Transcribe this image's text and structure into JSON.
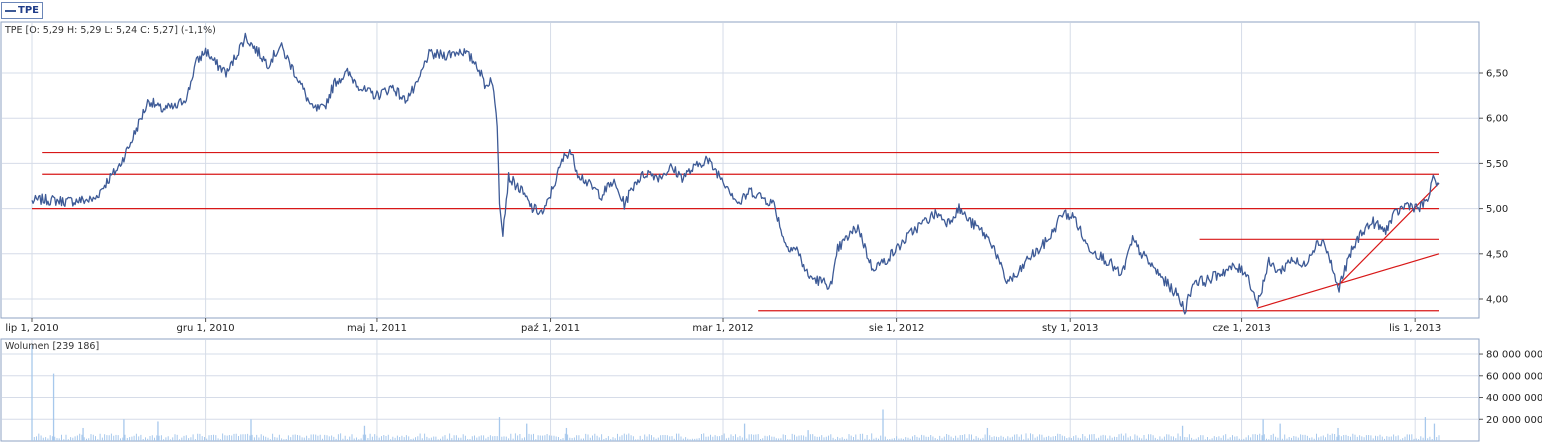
{
  "legend": {
    "label": "TPE",
    "color": "#3d5a96"
  },
  "price_panel": {
    "info": "TPE [O: 5,29  H: 5,29  L: 5,24  C: 5,27] (-1,1%)"
  },
  "volume_panel": {
    "info": "Wolumen [239 186]"
  },
  "colors": {
    "series": "#3d5a96",
    "trendline": "#d81818",
    "volume": "#a7c8ec",
    "grid": "#d6dce8",
    "frame": "#8fa3c3"
  },
  "chart_data": [
    {
      "type": "line",
      "id": "price",
      "series": [
        {
          "name": "TPE"
        }
      ],
      "x_range": [
        "2010-07-01",
        "2013-11-22"
      ],
      "ylim": [
        3.8,
        7.05
      ],
      "y_ticks": [
        4.0,
        4.5,
        5.0,
        5.5,
        6.0,
        6.5
      ],
      "y_tick_labels": [
        "4,00",
        "4,50",
        "5,00",
        "5,50",
        "6,00",
        "6,50"
      ],
      "x_ticks": [
        "2010-07-01",
        "2010-12-01",
        "2011-05-01",
        "2011-10-01",
        "2012-03-01",
        "2012-08-01",
        "2013-01-01",
        "2013-06-01",
        "2013-11-01"
      ],
      "x_tick_labels": [
        "lip 1, 2010",
        "gru 1, 2010",
        "maj 1, 2011",
        "paź 1, 2011",
        "mar 1, 2012",
        "sie 1, 2012",
        "sty 1, 2013",
        "cze 1, 2013",
        "lis 1, 2013"
      ],
      "points": [
        [
          "2010-07-01",
          5.08
        ],
        [
          "2010-07-10",
          5.1
        ],
        [
          "2010-08-01",
          5.08
        ],
        [
          "2010-08-25",
          5.1
        ],
        [
          "2010-09-05",
          5.3
        ],
        [
          "2010-09-15",
          5.45
        ],
        [
          "2010-09-25",
          5.7
        ],
        [
          "2010-10-05",
          6.0
        ],
        [
          "2010-10-12",
          6.2
        ],
        [
          "2010-10-22",
          6.1
        ],
        [
          "2010-11-05",
          6.12
        ],
        [
          "2010-11-15",
          6.25
        ],
        [
          "2010-11-22",
          6.6
        ],
        [
          "2010-12-01",
          6.75
        ],
        [
          "2010-12-10",
          6.6
        ],
        [
          "2010-12-20",
          6.5
        ],
        [
          "2011-01-05",
          6.9
        ],
        [
          "2011-01-15",
          6.75
        ],
        [
          "2011-01-25",
          6.6
        ],
        [
          "2011-02-05",
          6.8
        ],
        [
          "2011-02-20",
          6.45
        ],
        [
          "2011-03-05",
          6.1
        ],
        [
          "2011-03-15",
          6.1
        ],
        [
          "2011-03-25",
          6.4
        ],
        [
          "2011-04-05",
          6.5
        ],
        [
          "2011-04-20",
          6.3
        ],
        [
          "2011-05-01",
          6.25
        ],
        [
          "2011-05-15",
          6.35
        ],
        [
          "2011-05-25",
          6.2
        ],
        [
          "2011-06-05",
          6.35
        ],
        [
          "2011-06-15",
          6.7
        ],
        [
          "2011-07-01",
          6.7
        ],
        [
          "2011-07-15",
          6.75
        ],
        [
          "2011-07-28",
          6.6
        ],
        [
          "2011-08-05",
          6.35
        ],
        [
          "2011-08-10",
          6.45
        ],
        [
          "2011-08-15",
          5.95
        ],
        [
          "2011-08-17",
          5.1
        ],
        [
          "2011-08-20",
          4.75
        ],
        [
          "2011-08-25",
          5.35
        ],
        [
          "2011-09-05",
          5.2
        ],
        [
          "2011-09-15",
          5.0
        ],
        [
          "2011-09-25",
          4.95
        ],
        [
          "2011-10-05",
          5.3
        ],
        [
          "2011-10-12",
          5.55
        ],
        [
          "2011-10-18",
          5.65
        ],
        [
          "2011-10-25",
          5.4
        ],
        [
          "2011-11-05",
          5.25
        ],
        [
          "2011-11-15",
          5.15
        ],
        [
          "2011-11-25",
          5.3
        ],
        [
          "2011-12-05",
          5.05
        ],
        [
          "2011-12-15",
          5.3
        ],
        [
          "2011-12-25",
          5.4
        ],
        [
          "2012-01-05",
          5.35
        ],
        [
          "2012-01-15",
          5.45
        ],
        [
          "2012-01-25",
          5.35
        ],
        [
          "2012-02-05",
          5.45
        ],
        [
          "2012-02-15",
          5.55
        ],
        [
          "2012-02-25",
          5.4
        ],
        [
          "2012-03-05",
          5.25
        ],
        [
          "2012-03-15",
          5.05
        ],
        [
          "2012-03-25",
          5.2
        ],
        [
          "2012-04-05",
          5.12
        ],
        [
          "2012-04-15",
          5.05
        ],
        [
          "2012-04-25",
          4.6
        ],
        [
          "2012-05-05",
          4.55
        ],
        [
          "2012-05-15",
          4.25
        ],
        [
          "2012-05-25",
          4.2
        ],
        [
          "2012-06-05",
          4.15
        ],
        [
          "2012-06-10",
          4.55
        ],
        [
          "2012-06-20",
          4.7
        ],
        [
          "2012-06-28",
          4.8
        ],
        [
          "2012-07-10",
          4.35
        ],
        [
          "2012-07-20",
          4.4
        ],
        [
          "2012-08-01",
          4.55
        ],
        [
          "2012-08-15",
          4.75
        ],
        [
          "2012-08-25",
          4.85
        ],
        [
          "2012-09-05",
          4.95
        ],
        [
          "2012-09-15",
          4.85
        ],
        [
          "2012-09-25",
          5.0
        ],
        [
          "2012-10-05",
          4.85
        ],
        [
          "2012-10-15",
          4.75
        ],
        [
          "2012-10-25",
          4.6
        ],
        [
          "2012-11-05",
          4.2
        ],
        [
          "2012-11-15",
          4.25
        ],
        [
          "2012-11-25",
          4.45
        ],
        [
          "2012-12-05",
          4.55
        ],
        [
          "2012-12-15",
          4.7
        ],
        [
          "2012-12-25",
          4.95
        ],
        [
          "2013-01-05",
          4.9
        ],
        [
          "2013-01-15",
          4.6
        ],
        [
          "2013-01-25",
          4.5
        ],
        [
          "2013-02-05",
          4.4
        ],
        [
          "2013-02-15",
          4.25
        ],
        [
          "2013-02-25",
          4.65
        ],
        [
          "2013-03-05",
          4.5
        ],
        [
          "2013-03-15",
          4.35
        ],
        [
          "2013-03-25",
          4.2
        ],
        [
          "2013-04-05",
          4.05
        ],
        [
          "2013-04-12",
          3.88
        ],
        [
          "2013-04-20",
          4.2
        ],
        [
          "2013-05-01",
          4.2
        ],
        [
          "2013-05-15",
          4.3
        ],
        [
          "2013-05-25",
          4.35
        ],
        [
          "2013-06-05",
          4.3
        ],
        [
          "2013-06-15",
          3.95
        ],
        [
          "2013-06-25",
          4.4
        ],
        [
          "2013-07-05",
          4.3
        ],
        [
          "2013-07-15",
          4.45
        ],
        [
          "2013-07-25",
          4.35
        ],
        [
          "2013-08-05",
          4.6
        ],
        [
          "2013-08-12",
          4.65
        ],
        [
          "2013-08-20",
          4.35
        ],
        [
          "2013-08-25",
          4.1
        ],
        [
          "2013-09-05",
          4.5
        ],
        [
          "2013-09-15",
          4.75
        ],
        [
          "2013-09-25",
          4.85
        ],
        [
          "2013-10-05",
          4.75
        ],
        [
          "2013-10-15",
          4.95
        ],
        [
          "2013-10-25",
          5.05
        ],
        [
          "2013-11-05",
          5.0
        ],
        [
          "2013-11-12",
          5.1
        ],
        [
          "2013-11-18",
          5.35
        ],
        [
          "2013-11-22",
          5.27
        ]
      ],
      "trendlines": [
        {
          "from": [
            "2010-07-01",
            5.0
          ],
          "to": [
            "2013-11-22",
            5.0
          ]
        },
        {
          "from": [
            "2010-07-10",
            5.38
          ],
          "to": [
            "2013-11-22",
            5.38
          ]
        },
        {
          "from": [
            "2010-07-10",
            5.62
          ],
          "to": [
            "2013-11-22",
            5.62
          ]
        },
        {
          "from": [
            "2012-04-01",
            3.87
          ],
          "to": [
            "2013-11-22",
            3.87
          ]
        },
        {
          "from": [
            "2013-04-25",
            4.66
          ],
          "to": [
            "2013-11-22",
            4.66
          ]
        },
        {
          "from": [
            "2013-06-15",
            3.9
          ],
          "to": [
            "2013-11-22",
            4.5
          ]
        },
        {
          "from": [
            "2013-08-25",
            4.15
          ],
          "to": [
            "2013-11-22",
            5.28
          ]
        }
      ]
    },
    {
      "type": "bar",
      "id": "volume",
      "series": [
        {
          "name": "Wolumen"
        }
      ],
      "x_range": [
        "2010-07-01",
        "2013-11-22"
      ],
      "ylim": [
        0,
        92000000
      ],
      "y_ticks": [
        20000000,
        40000000,
        60000000,
        80000000
      ],
      "y_tick_labels": [
        "20 000 000",
        "40 000 000",
        "60 000 000",
        "80 000 000"
      ],
      "baseline": 3500000,
      "spikes": [
        [
          "2010-07-01",
          88000000
        ],
        [
          "2010-07-20",
          62000000
        ],
        [
          "2010-08-15",
          12000000
        ],
        [
          "2010-09-20",
          20000000
        ],
        [
          "2010-10-20",
          18000000
        ],
        [
          "2011-01-10",
          20000000
        ],
        [
          "2011-04-20",
          14000000
        ],
        [
          "2011-08-17",
          22000000
        ],
        [
          "2011-09-10",
          16000000
        ],
        [
          "2011-10-15",
          12000000
        ],
        [
          "2012-03-20",
          16000000
        ],
        [
          "2012-05-15",
          10000000
        ],
        [
          "2012-07-20",
          29000000
        ],
        [
          "2012-10-20",
          12000000
        ],
        [
          "2013-04-10",
          14000000
        ],
        [
          "2013-06-20",
          20000000
        ],
        [
          "2013-07-05",
          16000000
        ],
        [
          "2013-08-25",
          12000000
        ],
        [
          "2013-11-10",
          22000000
        ],
        [
          "2013-11-18",
          16000000
        ]
      ]
    }
  ]
}
